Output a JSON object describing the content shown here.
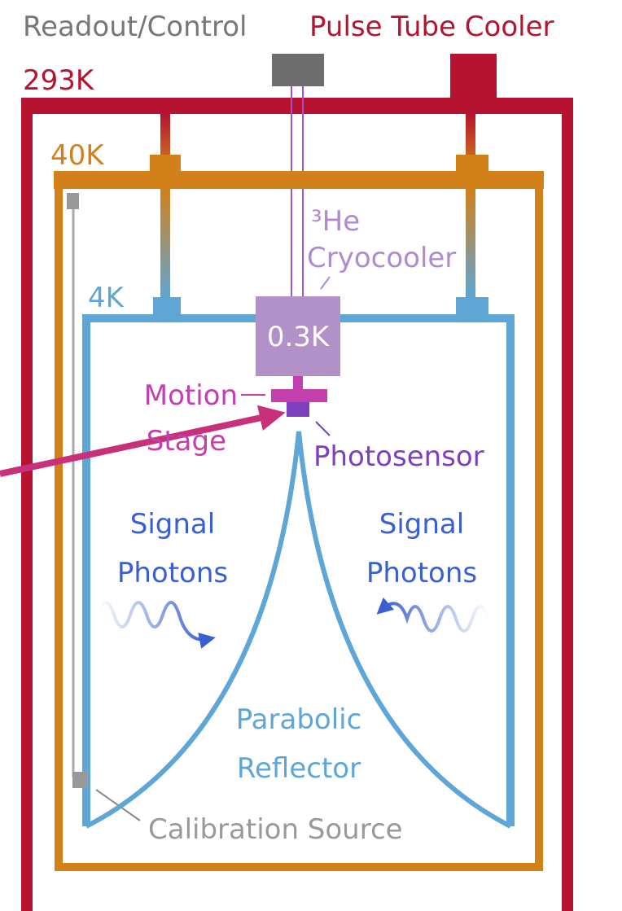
{
  "labels": {
    "readout": "Readout/Control",
    "cooler": "Pulse Tube Cooler",
    "t293": "293K",
    "t40": "40K",
    "t4": "4K",
    "cryo": [
      "³He",
      "Cryocooler"
    ],
    "t03": "0.3K",
    "motion": [
      "Motion",
      "Stage"
    ],
    "photosensor": "Photosensor",
    "signal_left": [
      "Signal",
      "Photons"
    ],
    "signal_right": [
      "Signal",
      "Photons"
    ],
    "reflector": [
      "Parabolic",
      "Reflector"
    ],
    "calibration": "Calibration Source"
  }
}
